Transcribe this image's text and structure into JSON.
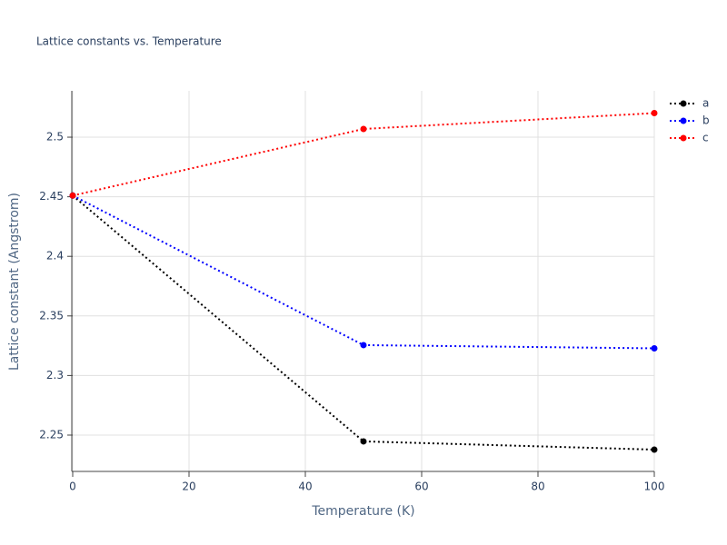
{
  "chart_data": {
    "type": "line",
    "title": "Lattice constants vs. Temperature",
    "x_label": "Temperature (K)",
    "y_label": "Lattice constant (Angstrom)",
    "x": [
      0,
      50,
      100
    ],
    "series": [
      {
        "name": "a",
        "color": "#000000",
        "values": [
          2.451,
          2.2447,
          2.2378
        ]
      },
      {
        "name": "b",
        "color": "#0000ff",
        "values": [
          2.451,
          2.3255,
          2.3228
        ]
      },
      {
        "name": "c",
        "color": "#ff0000",
        "values": [
          2.451,
          2.5069,
          2.5202
        ]
      }
    ],
    "xlim": [
      0,
      100
    ],
    "xticks": [
      0,
      20,
      40,
      60,
      80,
      100
    ],
    "ylim": [
      2.2195,
      2.5389
    ],
    "yticks": [
      2.25,
      2.3,
      2.35,
      2.4,
      2.45,
      2.5
    ],
    "grid": true,
    "legend": "top-right"
  }
}
